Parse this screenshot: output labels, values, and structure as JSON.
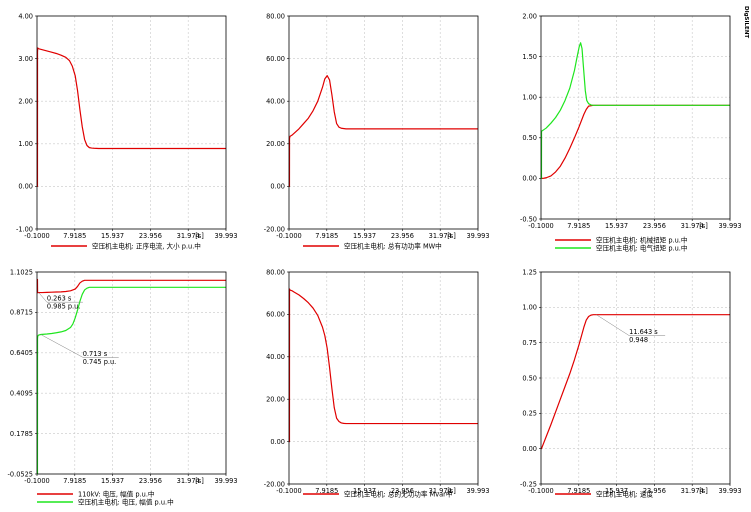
{
  "logo": "DIgSILENT",
  "colors": {
    "red": "#e00000",
    "green": "#1ee61e",
    "frame": "#000000",
    "grid": "#c8c8c8"
  },
  "chart_data": [
    {
      "type": "line",
      "xticks": [
        "-0.1000",
        "7.9185",
        "15.937",
        "23.956",
        "31.974",
        "39.993"
      ],
      "xunit": "[s]",
      "xlim": [
        -0.1,
        39.993
      ],
      "yticks": [
        "4.00",
        "3.00",
        "2.00",
        "1.00",
        "0.00",
        "-1.00"
      ],
      "ylim": [
        -1.0,
        4.0
      ],
      "series": [
        {
          "name": "空压机主电机: 正序电流, 大小 p.u.中",
          "color": "#e00000",
          "x": [
            -0.1,
            0.0,
            0.01,
            0.05,
            0.3,
            1,
            2,
            3,
            4,
            5,
            6,
            6.8,
            7.4,
            8,
            8.5,
            9,
            9.5,
            10,
            10.5,
            11,
            11.5,
            12,
            13,
            39.993
          ],
          "y": [
            0.0,
            0.0,
            3.15,
            3.25,
            3.23,
            3.21,
            3.18,
            3.15,
            3.12,
            3.08,
            3.03,
            2.95,
            2.82,
            2.6,
            2.25,
            1.8,
            1.4,
            1.1,
            0.96,
            0.91,
            0.9,
            0.895,
            0.89,
            0.89
          ]
        }
      ],
      "annotations": []
    },
    {
      "type": "line",
      "xticks": [
        "-0.1000",
        "7.9185",
        "15.937",
        "23.956",
        "31.974",
        "39.993"
      ],
      "xunit": "[s]",
      "xlim": [
        -0.1,
        39.993
      ],
      "yticks": [
        "80.00",
        "60.00",
        "40.00",
        "20.00",
        "0.00",
        "-20.00"
      ],
      "ylim": [
        -20.0,
        80.0
      ],
      "series": [
        {
          "name": "空压机主电机: 总有功功率 MW中",
          "color": "#e00000",
          "x": [
            -0.1,
            0.0,
            0.01,
            0.1,
            0.5,
            1,
            2,
            3,
            4,
            5,
            6,
            7,
            7.5,
            8,
            8.5,
            9,
            9.5,
            10,
            10.5,
            11,
            12,
            39.993
          ],
          "y": [
            0.0,
            0.0,
            22.5,
            23.5,
            24.0,
            25.0,
            27.0,
            29.5,
            32.0,
            35.5,
            40.0,
            46.5,
            50.5,
            52.0,
            50.0,
            43.0,
            35.0,
            29.5,
            27.8,
            27.3,
            27.0,
            27.0
          ]
        }
      ],
      "annotations": []
    },
    {
      "type": "line",
      "xticks": [
        "-0.1000",
        "7.9185",
        "15.937",
        "23.956",
        "31.974",
        "39.993"
      ],
      "xunit": "[s]",
      "xlim": [
        -0.1,
        39.993
      ],
      "yticks": [
        "2.00",
        "1.50",
        "1.00",
        "0.50",
        "0.00",
        "-0.50"
      ],
      "ylim": [
        -0.5,
        2.0
      ],
      "series": [
        {
          "name": "空压机主电机: 机械扭矩 p.u.中",
          "color": "#e00000",
          "x": [
            -0.1,
            0.0,
            0.5,
            1,
            2,
            3,
            4,
            5,
            6,
            7,
            8,
            9,
            9.5,
            10,
            11,
            12,
            39.993
          ],
          "y": [
            0.0,
            0.0,
            0.002,
            0.008,
            0.03,
            0.08,
            0.15,
            0.25,
            0.37,
            0.5,
            0.64,
            0.79,
            0.85,
            0.89,
            0.9,
            0.9,
            0.9
          ]
        },
        {
          "name": "空压机主电机: 电气扭矩 p.u.中",
          "color": "#1ee61e",
          "x": [
            -0.1,
            0.0,
            0.01,
            0.5,
            1,
            2,
            3,
            4,
            5,
            6,
            7,
            7.5,
            8,
            8.3,
            8.6,
            9,
            9.3,
            9.6,
            10,
            10.5,
            11,
            12,
            39.993
          ],
          "y": [
            0.0,
            0.0,
            0.58,
            0.6,
            0.62,
            0.68,
            0.75,
            0.84,
            0.96,
            1.11,
            1.33,
            1.48,
            1.62,
            1.67,
            1.6,
            1.3,
            1.08,
            0.96,
            0.92,
            0.905,
            0.9,
            0.9,
            0.9
          ]
        }
      ],
      "annotations": []
    },
    {
      "type": "line",
      "xticks": [
        "-0.1000",
        "7.9185",
        "15.937",
        "23.956",
        "31.974",
        "39.993"
      ],
      "xunit": "[s]",
      "xlim": [
        -0.1,
        39.993
      ],
      "yticks": [
        "1.1025",
        "0.8715",
        "0.6405",
        "0.4095",
        "0.1785",
        "-0.0525"
      ],
      "ylim": [
        -0.0525,
        1.1025
      ],
      "series": [
        {
          "name": "110kV: 电压, 幅值 p.u.中",
          "color": "#e00000",
          "x": [
            -0.1,
            0.0,
            0.02,
            0.1,
            0.263,
            1,
            2,
            3,
            4,
            5,
            6,
            7,
            8,
            8.5,
            9,
            9.5,
            10,
            11,
            39.993
          ],
          "y": [
            1.06,
            1.06,
            0.985,
            0.984,
            0.985,
            0.985,
            0.986,
            0.987,
            0.988,
            0.989,
            0.991,
            0.995,
            1.005,
            1.02,
            1.04,
            1.05,
            1.055,
            1.055,
            1.055
          ]
        },
        {
          "name": "空压机主电机: 电压, 幅值 p.u.中",
          "color": "#1ee61e",
          "x": [
            -0.1,
            0.0,
            0.01,
            0.05,
            0.25,
            0.713,
            1,
            2,
            3,
            4,
            5,
            6,
            7,
            7.5,
            8,
            8.5,
            9,
            9.5,
            10,
            10.5,
            11,
            12,
            39.993
          ],
          "y": [
            -0.0525,
            -0.0525,
            0.72,
            0.735,
            0.742,
            0.745,
            0.746,
            0.748,
            0.751,
            0.755,
            0.76,
            0.768,
            0.785,
            0.805,
            0.84,
            0.885,
            0.935,
            0.975,
            1.0,
            1.01,
            1.015,
            1.015,
            1.015
          ]
        }
      ],
      "annotations": [
        {
          "line1": "0.263 s",
          "line2": "0.985 p.u.",
          "x": 0.263,
          "y": 0.985,
          "lx": 2.0,
          "ly": 0.93
        },
        {
          "line1": "0.713 s",
          "line2": "0.745 p.u.",
          "x": 0.713,
          "y": 0.745,
          "lx": 9.6,
          "ly": 0.615
        }
      ]
    },
    {
      "type": "line",
      "xticks": [
        "-0.1000",
        "7.9185",
        "15.937",
        "23.956",
        "31.974",
        "39.993"
      ],
      "xunit": "[s]",
      "xlim": [
        -0.1,
        39.993
      ],
      "yticks": [
        "80.00",
        "60.00",
        "40.00",
        "20.00",
        "0.00",
        "-20.00"
      ],
      "ylim": [
        -20.0,
        80.0
      ],
      "series": [
        {
          "name": "空压机主电机: 总的无功功率 Mvar中",
          "color": "#e00000",
          "x": [
            -0.1,
            0.0,
            0.01,
            0.1,
            0.5,
            1,
            2,
            3,
            4,
            5,
            6,
            7,
            7.5,
            8,
            8.5,
            9,
            9.5,
            10,
            10.5,
            11,
            11.5,
            12,
            39.993
          ],
          "y": [
            0.0,
            0.0,
            72.0,
            71.5,
            71.2,
            70.5,
            69.2,
            67.5,
            65.5,
            63.0,
            59.5,
            54.0,
            50.0,
            44.0,
            35.0,
            25.0,
            16.0,
            11.0,
            9.5,
            8.8,
            8.6,
            8.5,
            8.5
          ]
        }
      ],
      "annotations": []
    },
    {
      "type": "line",
      "xticks": [
        "-0.1000",
        "7.9185",
        "15.937",
        "23.956",
        "31.974",
        "39.993"
      ],
      "xunit": "[s]",
      "xlim": [
        -0.1,
        39.993
      ],
      "yticks": [
        "1.25",
        "1.00",
        "0.75",
        "0.50",
        "0.25",
        "0.00",
        "-0.25"
      ],
      "ylim": [
        -0.25,
        1.25
      ],
      "series": [
        {
          "name": "空压机主电机: 速度",
          "color": "#e00000",
          "x": [
            -0.1,
            0.0,
            1,
            2,
            3,
            4,
            5,
            6,
            7,
            8,
            8.5,
            9,
            9.5,
            10,
            10.5,
            11,
            11.643,
            12.5,
            13,
            39.993
          ],
          "y": [
            0.0,
            0.0,
            0.085,
            0.17,
            0.26,
            0.35,
            0.44,
            0.53,
            0.63,
            0.74,
            0.8,
            0.86,
            0.91,
            0.935,
            0.945,
            0.948,
            0.948,
            0.948,
            0.948,
            0.948
          ]
        }
      ],
      "annotations": [
        {
          "line1": "11.643 s",
          "line2": "0.948",
          "x": 11.643,
          "y": 0.948,
          "lx": 18.6,
          "ly": 0.8
        }
      ]
    }
  ]
}
